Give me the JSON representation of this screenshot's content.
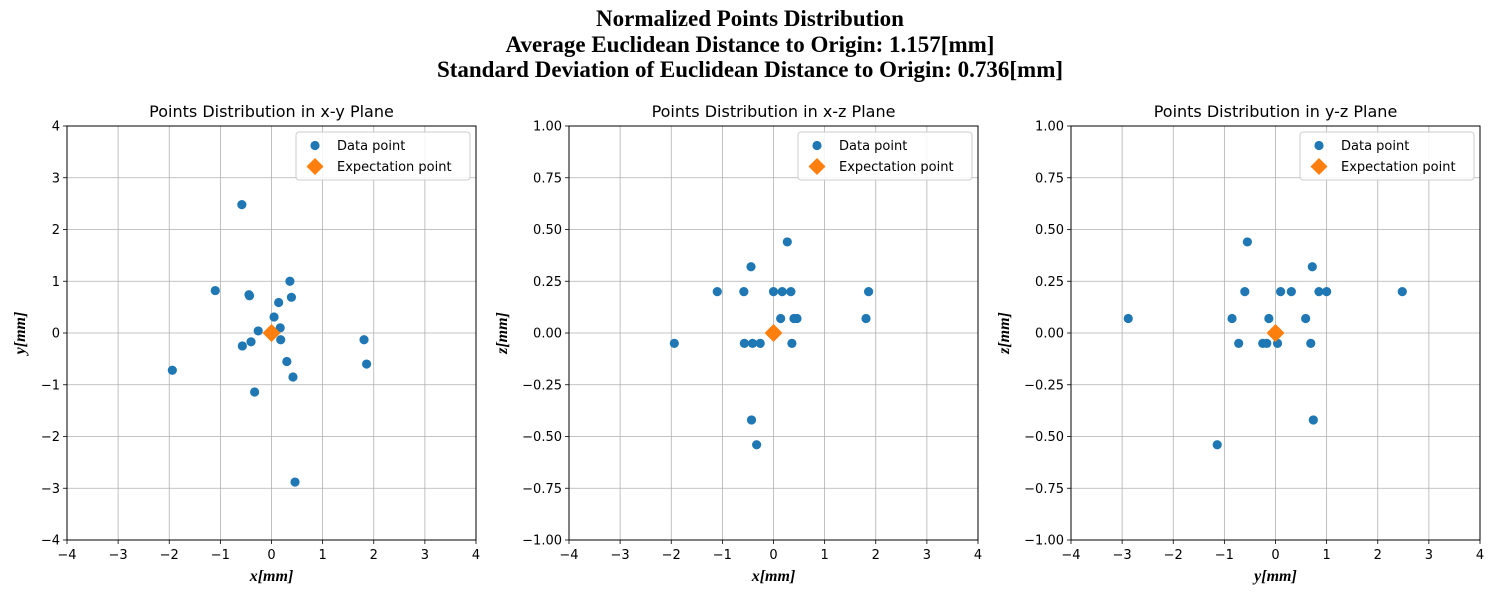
{
  "figure": {
    "title_lines": [
      "Normalized Points Distribution",
      "Average Euclidean Distance to Origin: 1.157[mm]",
      "Standard Deviation of Euclidean Distance to Origin: 0.736[mm]"
    ]
  },
  "colors": {
    "data": "#1f77b4",
    "expectation": "#ff7f0e",
    "grid": "#b0b0b0"
  },
  "chart_data": [
    {
      "type": "scatter",
      "title": "Points Distribution in x-y Plane",
      "xlabel": "x[mm]",
      "ylabel": "y[mm]",
      "xlim": [
        -4,
        4
      ],
      "ylim": [
        -4,
        4
      ],
      "xticks": [
        -4,
        -3,
        -2,
        -1,
        0,
        1,
        2,
        3,
        4
      ],
      "yticks": [
        -4,
        -3,
        -2,
        -1,
        0,
        1,
        2,
        3,
        4
      ],
      "xtick_labels": [
        "−4",
        "−3",
        "−2",
        "−1",
        "0",
        "1",
        "2",
        "3",
        "4"
      ],
      "ytick_labels": [
        "−4",
        "−3",
        "−2",
        "−1",
        "0",
        "1",
        "2",
        "3",
        "4"
      ],
      "grid": true,
      "legend": "upper right",
      "series": [
        {
          "name": "Data point",
          "marker": "circle",
          "points": [
            [
              -0.58,
              2.48
            ],
            [
              -1.1,
              0.82
            ],
            [
              -0.44,
              0.74
            ],
            [
              -0.43,
              0.72
            ],
            [
              0.36,
              1.0
            ],
            [
              0.39,
              0.69
            ],
            [
              0.14,
              0.59
            ],
            [
              0.05,
              0.31
            ],
            [
              0.17,
              0.1
            ],
            [
              -0.26,
              0.04
            ],
            [
              0.18,
              -0.13
            ],
            [
              -0.4,
              -0.17
            ],
            [
              -0.57,
              -0.25
            ],
            [
              1.81,
              -0.13
            ],
            [
              0.3,
              -0.55
            ],
            [
              1.86,
              -0.6
            ],
            [
              -1.94,
              -0.72
            ],
            [
              0.42,
              -0.85
            ],
            [
              -0.33,
              -1.14
            ],
            [
              0.46,
              -2.88
            ]
          ]
        },
        {
          "name": "Expectation point",
          "marker": "diamond",
          "points": [
            [
              0,
              0
            ]
          ]
        }
      ]
    },
    {
      "type": "scatter",
      "title": "Points Distribution in x-z Plane",
      "xlabel": "x[mm]",
      "ylabel": "z[mm]",
      "xlim": [
        -4,
        4
      ],
      "ylim": [
        -1,
        1
      ],
      "xticks": [
        -4,
        -3,
        -2,
        -1,
        0,
        1,
        2,
        3,
        4
      ],
      "yticks": [
        -1,
        -0.75,
        -0.5,
        -0.25,
        0,
        0.25,
        0.5,
        0.75,
        1
      ],
      "xtick_labels": [
        "−4",
        "−3",
        "−2",
        "−1",
        "0",
        "1",
        "2",
        "3",
        "4"
      ],
      "ytick_labels": [
        "−1.00",
        "−0.75",
        "−0.50",
        "−0.25",
        "0.00",
        "0.25",
        "0.50",
        "0.75",
        "1.00"
      ],
      "grid": true,
      "legend": "upper right",
      "series": [
        {
          "name": "Data point",
          "marker": "circle",
          "points": [
            [
              0.27,
              0.44
            ],
            [
              -0.44,
              0.32
            ],
            [
              -1.1,
              0.2
            ],
            [
              -0.58,
              0.2
            ],
            [
              0.0,
              0.2
            ],
            [
              0.17,
              0.2
            ],
            [
              0.34,
              0.2
            ],
            [
              1.86,
              0.2
            ],
            [
              0.14,
              0.07
            ],
            [
              0.4,
              0.07
            ],
            [
              0.46,
              0.07
            ],
            [
              1.81,
              0.07
            ],
            [
              -1.94,
              -0.05
            ],
            [
              -0.57,
              -0.05
            ],
            [
              -0.41,
              -0.05
            ],
            [
              -0.26,
              -0.05
            ],
            [
              0.36,
              -0.05
            ],
            [
              -0.43,
              -0.42
            ],
            [
              -0.33,
              -0.54
            ]
          ]
        },
        {
          "name": "Expectation point",
          "marker": "diamond",
          "points": [
            [
              0,
              0
            ]
          ]
        }
      ]
    },
    {
      "type": "scatter",
      "title": "Points Distribution in y-z Plane",
      "xlabel": "y[mm]",
      "ylabel": "z[mm]",
      "xlim": [
        -4,
        4
      ],
      "ylim": [
        -1,
        1
      ],
      "xticks": [
        -4,
        -3,
        -2,
        -1,
        0,
        1,
        2,
        3,
        4
      ],
      "yticks": [
        -1,
        -0.75,
        -0.5,
        -0.25,
        0,
        0.25,
        0.5,
        0.75,
        1
      ],
      "xtick_labels": [
        "−4",
        "−3",
        "−2",
        "−1",
        "0",
        "1",
        "2",
        "3",
        "4"
      ],
      "ytick_labels": [
        "−1.00",
        "−0.75",
        "−0.50",
        "−0.25",
        "0.00",
        "0.25",
        "0.50",
        "0.75",
        "1.00"
      ],
      "grid": true,
      "legend": "upper right",
      "series": [
        {
          "name": "Data point",
          "marker": "circle",
          "points": [
            [
              -0.55,
              0.44
            ],
            [
              0.72,
              0.32
            ],
            [
              -0.6,
              0.2
            ],
            [
              0.1,
              0.2
            ],
            [
              0.31,
              0.2
            ],
            [
              0.85,
              0.2
            ],
            [
              1.0,
              0.2
            ],
            [
              2.48,
              0.2
            ],
            [
              -2.88,
              0.07
            ],
            [
              -0.85,
              0.07
            ],
            [
              -0.13,
              0.07
            ],
            [
              0.59,
              0.07
            ],
            [
              -0.72,
              -0.05
            ],
            [
              -0.25,
              -0.05
            ],
            [
              -0.17,
              -0.05
            ],
            [
              0.04,
              -0.05
            ],
            [
              0.69,
              -0.05
            ],
            [
              0.74,
              -0.42
            ],
            [
              -1.14,
              -0.54
            ]
          ]
        },
        {
          "name": "Expectation point",
          "marker": "diamond",
          "points": [
            [
              0,
              0
            ]
          ]
        }
      ]
    }
  ]
}
